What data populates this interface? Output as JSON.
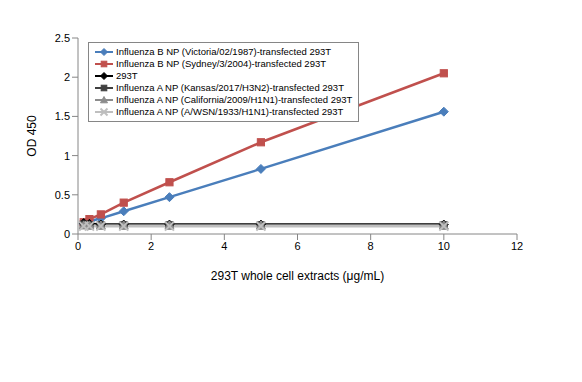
{
  "chart_data": {
    "type": "line",
    "x_label": "293T whole cell extracts (μg/mL)",
    "y_label": "OD 450",
    "x": [
      0.156,
      0.3125,
      0.625,
      1.25,
      2.5,
      5,
      10
    ],
    "xlim": [
      0,
      12
    ],
    "xticks": [
      0,
      2,
      4,
      6,
      8,
      10,
      12
    ],
    "ylim": [
      0,
      2.5
    ],
    "yticks": [
      0,
      0.5,
      1,
      1.5,
      2,
      2.5
    ],
    "grid": false,
    "legend": "upper left",
    "series": [
      {
        "name": "Influenza B NP (Victoria/02/1987)-transfected 293T",
        "color": "#4a7ebb",
        "marker": "diamond",
        "values": [
          0.13,
          0.16,
          0.2,
          0.29,
          0.47,
          0.83,
          1.56
        ]
      },
      {
        "name": "Influenza B NP (Sydney/3/2004)-transfected 293T",
        "color": "#c0504d",
        "marker": "square",
        "values": [
          0.15,
          0.19,
          0.25,
          0.4,
          0.66,
          1.17,
          2.05
        ]
      },
      {
        "name": "293T",
        "color": "#000000",
        "marker": "diamond",
        "values": [
          0.14,
          0.13,
          0.12,
          0.12,
          0.12,
          0.12,
          0.12
        ]
      },
      {
        "name": "Influenza A NP (Kansas/2017/H3N2)-transfected 293T",
        "color": "#404040",
        "marker": "square",
        "values": [
          0.12,
          0.11,
          0.11,
          0.11,
          0.11,
          0.11,
          0.11
        ]
      },
      {
        "name": "Influenza A NP (California/2009/H1N1)-transfected 293T",
        "color": "#8c8c8c",
        "marker": "triangle",
        "values": [
          0.11,
          0.11,
          0.11,
          0.11,
          0.11,
          0.11,
          0.11
        ]
      },
      {
        "name": "Influenza A NP (A/WSN/1933/H1N1)-transfected 293T",
        "color": "#bfbfbf",
        "marker": "x",
        "values": [
          0.1,
          0.1,
          0.1,
          0.1,
          0.1,
          0.1,
          0.1
        ]
      }
    ]
  }
}
